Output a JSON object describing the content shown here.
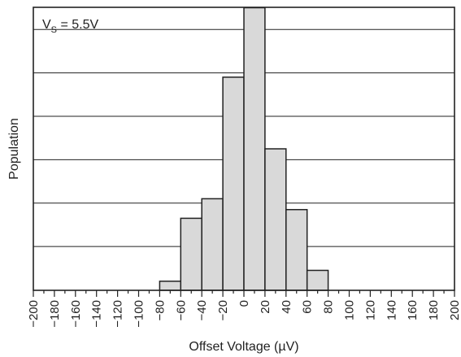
{
  "chart_data": {
    "type": "bar",
    "annotation": {
      "main": "V",
      "sub": "S",
      "rest": " = 5.5V"
    },
    "xlabel": "Offset Voltage (µV)",
    "ylabel": "Population",
    "xlim": [
      -200,
      200
    ],
    "ylim": [
      0,
      65
    ],
    "x_ticks": [
      -200,
      -180,
      -160,
      -140,
      -120,
      -100,
      -80,
      -60,
      -40,
      -20,
      0,
      20,
      40,
      60,
      80,
      100,
      120,
      140,
      160,
      180,
      200
    ],
    "x_tick_labels": [
      "−200",
      "−180",
      "−160",
      "−140",
      "−120",
      "−100",
      "−80",
      "−60",
      "−40",
      "−20",
      "0",
      "20",
      "40",
      "60",
      "80",
      "100",
      "120",
      "140",
      "160",
      "180",
      "200"
    ],
    "y_gridlines": [
      10,
      20,
      30,
      40,
      50,
      60
    ],
    "bins": [
      {
        "from": -80,
        "to": -60,
        "value": 2
      },
      {
        "from": -60,
        "to": -40,
        "value": 16.5
      },
      {
        "from": -40,
        "to": -20,
        "value": 21
      },
      {
        "from": -20,
        "to": 0,
        "value": 49
      },
      {
        "from": 0,
        "to": 20,
        "value": 65
      },
      {
        "from": 20,
        "to": 40,
        "value": 32.5
      },
      {
        "from": 40,
        "to": 60,
        "value": 18.5
      },
      {
        "from": 60,
        "to": 80,
        "value": 4.5
      }
    ],
    "bar_color": "#d9d9d9",
    "bar_edge_color": "#222222",
    "grid": true
  }
}
